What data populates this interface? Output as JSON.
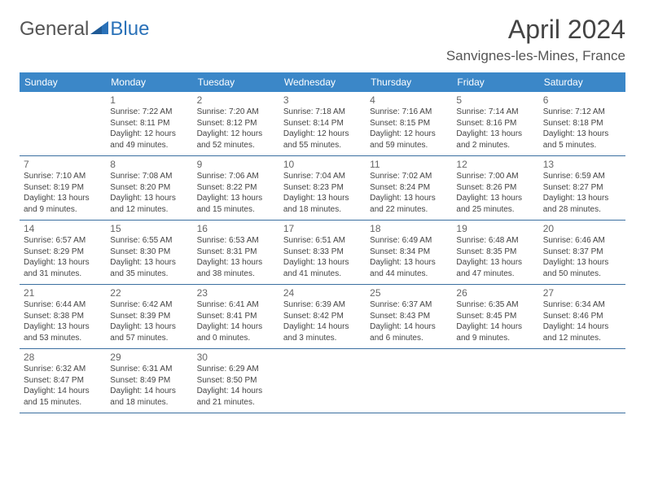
{
  "branding": {
    "text_general": "General",
    "text_blue": "Blue",
    "logo_color": "#2a71b8",
    "text_color": "#555555"
  },
  "header": {
    "title": "April 2024",
    "location": "Sanvignes-les-Mines, France"
  },
  "colors": {
    "header_bar": "#3b87c8",
    "row_divider": "#3b6fa0",
    "weekday_text": "#ffffff",
    "daynum_text": "#666666",
    "body_text": "#444444",
    "background": "#ffffff"
  },
  "typography": {
    "title_fontsize": 32,
    "location_fontsize": 17,
    "weekday_fontsize": 12,
    "daynum_fontsize": 12,
    "body_fontsize": 10
  },
  "weekdays": [
    "Sunday",
    "Monday",
    "Tuesday",
    "Wednesday",
    "Thursday",
    "Friday",
    "Saturday"
  ],
  "weeks": [
    [
      {
        "num": "",
        "l1": "",
        "l2": "",
        "l3": "",
        "l4": ""
      },
      {
        "num": "1",
        "l1": "Sunrise: 7:22 AM",
        "l2": "Sunset: 8:11 PM",
        "l3": "Daylight: 12 hours",
        "l4": "and 49 minutes."
      },
      {
        "num": "2",
        "l1": "Sunrise: 7:20 AM",
        "l2": "Sunset: 8:12 PM",
        "l3": "Daylight: 12 hours",
        "l4": "and 52 minutes."
      },
      {
        "num": "3",
        "l1": "Sunrise: 7:18 AM",
        "l2": "Sunset: 8:14 PM",
        "l3": "Daylight: 12 hours",
        "l4": "and 55 minutes."
      },
      {
        "num": "4",
        "l1": "Sunrise: 7:16 AM",
        "l2": "Sunset: 8:15 PM",
        "l3": "Daylight: 12 hours",
        "l4": "and 59 minutes."
      },
      {
        "num": "5",
        "l1": "Sunrise: 7:14 AM",
        "l2": "Sunset: 8:16 PM",
        "l3": "Daylight: 13 hours",
        "l4": "and 2 minutes."
      },
      {
        "num": "6",
        "l1": "Sunrise: 7:12 AM",
        "l2": "Sunset: 8:18 PM",
        "l3": "Daylight: 13 hours",
        "l4": "and 5 minutes."
      }
    ],
    [
      {
        "num": "7",
        "l1": "Sunrise: 7:10 AM",
        "l2": "Sunset: 8:19 PM",
        "l3": "Daylight: 13 hours",
        "l4": "and 9 minutes."
      },
      {
        "num": "8",
        "l1": "Sunrise: 7:08 AM",
        "l2": "Sunset: 8:20 PM",
        "l3": "Daylight: 13 hours",
        "l4": "and 12 minutes."
      },
      {
        "num": "9",
        "l1": "Sunrise: 7:06 AM",
        "l2": "Sunset: 8:22 PM",
        "l3": "Daylight: 13 hours",
        "l4": "and 15 minutes."
      },
      {
        "num": "10",
        "l1": "Sunrise: 7:04 AM",
        "l2": "Sunset: 8:23 PM",
        "l3": "Daylight: 13 hours",
        "l4": "and 18 minutes."
      },
      {
        "num": "11",
        "l1": "Sunrise: 7:02 AM",
        "l2": "Sunset: 8:24 PM",
        "l3": "Daylight: 13 hours",
        "l4": "and 22 minutes."
      },
      {
        "num": "12",
        "l1": "Sunrise: 7:00 AM",
        "l2": "Sunset: 8:26 PM",
        "l3": "Daylight: 13 hours",
        "l4": "and 25 minutes."
      },
      {
        "num": "13",
        "l1": "Sunrise: 6:59 AM",
        "l2": "Sunset: 8:27 PM",
        "l3": "Daylight: 13 hours",
        "l4": "and 28 minutes."
      }
    ],
    [
      {
        "num": "14",
        "l1": "Sunrise: 6:57 AM",
        "l2": "Sunset: 8:29 PM",
        "l3": "Daylight: 13 hours",
        "l4": "and 31 minutes."
      },
      {
        "num": "15",
        "l1": "Sunrise: 6:55 AM",
        "l2": "Sunset: 8:30 PM",
        "l3": "Daylight: 13 hours",
        "l4": "and 35 minutes."
      },
      {
        "num": "16",
        "l1": "Sunrise: 6:53 AM",
        "l2": "Sunset: 8:31 PM",
        "l3": "Daylight: 13 hours",
        "l4": "and 38 minutes."
      },
      {
        "num": "17",
        "l1": "Sunrise: 6:51 AM",
        "l2": "Sunset: 8:33 PM",
        "l3": "Daylight: 13 hours",
        "l4": "and 41 minutes."
      },
      {
        "num": "18",
        "l1": "Sunrise: 6:49 AM",
        "l2": "Sunset: 8:34 PM",
        "l3": "Daylight: 13 hours",
        "l4": "and 44 minutes."
      },
      {
        "num": "19",
        "l1": "Sunrise: 6:48 AM",
        "l2": "Sunset: 8:35 PM",
        "l3": "Daylight: 13 hours",
        "l4": "and 47 minutes."
      },
      {
        "num": "20",
        "l1": "Sunrise: 6:46 AM",
        "l2": "Sunset: 8:37 PM",
        "l3": "Daylight: 13 hours",
        "l4": "and 50 minutes."
      }
    ],
    [
      {
        "num": "21",
        "l1": "Sunrise: 6:44 AM",
        "l2": "Sunset: 8:38 PM",
        "l3": "Daylight: 13 hours",
        "l4": "and 53 minutes."
      },
      {
        "num": "22",
        "l1": "Sunrise: 6:42 AM",
        "l2": "Sunset: 8:39 PM",
        "l3": "Daylight: 13 hours",
        "l4": "and 57 minutes."
      },
      {
        "num": "23",
        "l1": "Sunrise: 6:41 AM",
        "l2": "Sunset: 8:41 PM",
        "l3": "Daylight: 14 hours",
        "l4": "and 0 minutes."
      },
      {
        "num": "24",
        "l1": "Sunrise: 6:39 AM",
        "l2": "Sunset: 8:42 PM",
        "l3": "Daylight: 14 hours",
        "l4": "and 3 minutes."
      },
      {
        "num": "25",
        "l1": "Sunrise: 6:37 AM",
        "l2": "Sunset: 8:43 PM",
        "l3": "Daylight: 14 hours",
        "l4": "and 6 minutes."
      },
      {
        "num": "26",
        "l1": "Sunrise: 6:35 AM",
        "l2": "Sunset: 8:45 PM",
        "l3": "Daylight: 14 hours",
        "l4": "and 9 minutes."
      },
      {
        "num": "27",
        "l1": "Sunrise: 6:34 AM",
        "l2": "Sunset: 8:46 PM",
        "l3": "Daylight: 14 hours",
        "l4": "and 12 minutes."
      }
    ],
    [
      {
        "num": "28",
        "l1": "Sunrise: 6:32 AM",
        "l2": "Sunset: 8:47 PM",
        "l3": "Daylight: 14 hours",
        "l4": "and 15 minutes."
      },
      {
        "num": "29",
        "l1": "Sunrise: 6:31 AM",
        "l2": "Sunset: 8:49 PM",
        "l3": "Daylight: 14 hours",
        "l4": "and 18 minutes."
      },
      {
        "num": "30",
        "l1": "Sunrise: 6:29 AM",
        "l2": "Sunset: 8:50 PM",
        "l3": "Daylight: 14 hours",
        "l4": "and 21 minutes."
      },
      {
        "num": "",
        "l1": "",
        "l2": "",
        "l3": "",
        "l4": ""
      },
      {
        "num": "",
        "l1": "",
        "l2": "",
        "l3": "",
        "l4": ""
      },
      {
        "num": "",
        "l1": "",
        "l2": "",
        "l3": "",
        "l4": ""
      },
      {
        "num": "",
        "l1": "",
        "l2": "",
        "l3": "",
        "l4": ""
      }
    ]
  ]
}
